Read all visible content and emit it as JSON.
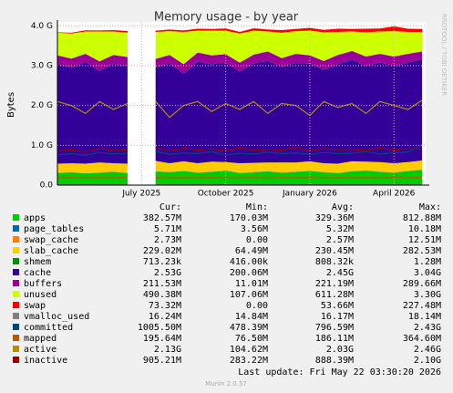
{
  "chart_data": {
    "type": "area",
    "title": "Memory usage - by year",
    "y_label": "Bytes",
    "side_note": "RRDTOOL / TOBI OETIKER",
    "last_update": "Last update: Fri May 22 03:30:20 2026",
    "footer": "Munin 2.0.57",
    "columns": [
      "Cur:",
      "Min:",
      "Avg:",
      "Max:"
    ],
    "categories": [
      null,
      null,
      null,
      null,
      null,
      null,
      "July 2025",
      null,
      null,
      null,
      null,
      null,
      "October 2025",
      null,
      null,
      null,
      null,
      null,
      "January 2026",
      null,
      null,
      null,
      null,
      null,
      "April 2026",
      null,
      null
    ],
    "ylim": [
      0,
      4100000000
    ],
    "yticks": [
      {
        "value": 0,
        "label": "0.0"
      },
      {
        "value": 1000000000,
        "label": "1.0 G"
      },
      {
        "value": 2000000000,
        "label": "2.0 G"
      },
      {
        "value": 3000000000,
        "label": "3.0 G"
      },
      {
        "value": 4000000000,
        "label": "4.0 G"
      }
    ],
    "grid": true,
    "series": [
      {
        "name": "apps",
        "color": "#00cc00",
        "style": "stack",
        "cur": "382.57M",
        "min": "170.03M",
        "avg": "329.36M",
        "max": "812.88M",
        "values": [
          300000000.0,
          320000000.0,
          290000000.0,
          310000000.0,
          330000000.0,
          300000000.0,
          null,
          340000000.0,
          320000000.0,
          350000000.0,
          310000000.0,
          330000000.0,
          360000000.0,
          300000000.0,
          320000000.0,
          340000000.0,
          310000000.0,
          330000000.0,
          350000000.0,
          320000000.0,
          300000000.0,
          340000000.0,
          360000000.0,
          330000000.0,
          310000000.0,
          350000000.0,
          380000000.0
        ]
      },
      {
        "name": "page_tables",
        "color": "#0066b3",
        "style": "stack",
        "cur": "5.71M",
        "min": "3.56M",
        "avg": "5.32M",
        "max": "10.18M",
        "values": [
          5200000.0,
          5300000.0,
          5100000.0,
          5400000.0,
          5300000.0,
          5200000.0,
          null,
          5500000.0,
          5300000.0,
          5400000.0,
          5200000.0,
          5300000.0,
          5500000.0,
          5100000.0,
          5300000.0,
          5400000.0,
          5200000.0,
          5300000.0,
          5400000.0,
          5300000.0,
          5200000.0,
          5400000.0,
          5500000.0,
          5300000.0,
          5200000.0,
          5500000.0,
          5700000.0
        ]
      },
      {
        "name": "swap_cache",
        "color": "#ff8000",
        "style": "stack",
        "cur": "2.73M",
        "min": "0.00",
        "avg": "2.57M",
        "max": "12.51M",
        "values": [
          2500000.0,
          2600000.0,
          2400000.0,
          2700000.0,
          2600000.0,
          2500000.0,
          null,
          2600000.0,
          2500000.0,
          2700000.0,
          2600000.0,
          2500000.0,
          2600000.0,
          2400000.0,
          2600000.0,
          2700000.0,
          2500000.0,
          2600000.0,
          2600000.0,
          2500000.0,
          2600000.0,
          2700000.0,
          2600000.0,
          2500000.0,
          2600000.0,
          2700000.0,
          2700000.0
        ]
      },
      {
        "name": "slab_cache",
        "color": "#ffcc00",
        "style": "stack",
        "cur": "229.02M",
        "min": "64.49M",
        "avg": "230.45M",
        "max": "282.53M",
        "values": [
          230000000.0,
          220000000.0,
          240000000.0,
          250000000.0,
          210000000.0,
          230000000.0,
          null,
          260000000.0,
          220000000.0,
          240000000.0,
          230000000.0,
          250000000.0,
          210000000.0,
          240000000.0,
          230000000.0,
          220000000.0,
          250000000.0,
          230000000.0,
          240000000.0,
          220000000.0,
          230000000.0,
          250000000.0,
          220000000.0,
          240000000.0,
          230000000.0,
          220000000.0,
          230000000.0
        ]
      },
      {
        "name": "shmem",
        "color": "#008f00",
        "style": "stack",
        "cur": "713.23k",
        "min": "416.00k",
        "avg": "808.32k",
        "max": "1.28M",
        "values": [
          800000.0,
          810000.0,
          790000.0,
          820000.0,
          810000.0,
          800000.0,
          null,
          830000.0,
          810000.0,
          800000.0,
          820000.0,
          810000.0,
          800000.0,
          790000.0,
          810000.0,
          820000.0,
          800000.0,
          810000.0,
          820000.0,
          810000.0,
          800000.0,
          810000.0,
          820000.0,
          810000.0,
          800000.0,
          780000.0,
          710000.0
        ]
      },
      {
        "name": "cache",
        "color": "#330099",
        "style": "stack",
        "cur": "2.53G",
        "min": "200.06M",
        "avg": "2.45G",
        "max": "3.04G",
        "values": [
          2500000000.0,
          2400000000.0,
          2550000000.0,
          2300000000.0,
          2500000000.0,
          2450000000.0,
          null,
          2350000000.0,
          2500000000.0,
          2200000000.0,
          2550000000.0,
          2450000000.0,
          2500000000.0,
          2300000000.0,
          2500000000.0,
          2550000000.0,
          2400000000.0,
          2500000000.0,
          2450000000.0,
          2350000000.0,
          2500000000.0,
          2550000000.0,
          2400000000.0,
          2500000000.0,
          2450000000.0,
          2500000000.0,
          2530000000.0
        ]
      },
      {
        "name": "buffers",
        "color": "#990099",
        "style": "stack",
        "cur": "211.53M",
        "min": "11.01M",
        "avg": "221.19M",
        "max": "289.66M",
        "values": [
          220000000.0,
          230000000.0,
          210000000.0,
          240000000.0,
          220000000.0,
          230000000.0,
          null,
          210000000.0,
          220000000.0,
          240000000.0,
          230000000.0,
          220000000.0,
          210000000.0,
          230000000.0,
          220000000.0,
          240000000.0,
          220000000.0,
          230000000.0,
          210000000.0,
          220000000.0,
          230000000.0,
          220000000.0,
          240000000.0,
          220000000.0,
          230000000.0,
          220000000.0,
          210000000.0
        ]
      },
      {
        "name": "unused",
        "color": "#ccff00",
        "style": "stack",
        "cur": "490.38M",
        "min": "107.06M",
        "avg": "611.28M",
        "max": "3.30G",
        "values": [
          570000000.0,
          630000000.0,
          560000000.0,
          750000000.0,
          590000000.0,
          610000000.0,
          null,
          680000000.0,
          600000000.0,
          810000000.0,
          550000000.0,
          620000000.0,
          590000000.0,
          730000000.0,
          600000000.0,
          500000000.0,
          640000000.0,
          570000000.0,
          620000000.0,
          720000000.0,
          580000000.0,
          490000000.0,
          610000000.0,
          560000000.0,
          640000000.0,
          550000000.0,
          490000000.0
        ]
      },
      {
        "name": "swap",
        "color": "#ff0000",
        "style": "stack",
        "cur": "73.32M",
        "min": "0.00",
        "avg": "53.66M",
        "max": "227.48M",
        "values": [
          10000000.0,
          20000000.0,
          30000000.0,
          25000000.0,
          35000000.0,
          40000000.0,
          null,
          30000000.0,
          40000000.0,
          35000000.0,
          50000000.0,
          45000000.0,
          55000000.0,
          40000000.0,
          60000000.0,
          50000000.0,
          65000000.0,
          55000000.0,
          70000000.0,
          60000000.0,
          80000000.0,
          65000000.0,
          90000000.0,
          75000000.0,
          120000000.0,
          80000000.0,
          73000000.0
        ]
      },
      {
        "name": "vmalloc_used",
        "color": "#808080",
        "style": "line",
        "cur": "16.24M",
        "min": "14.84M",
        "avg": "16.17M",
        "max": "18.14M",
        "values": [
          16000000.0,
          16000000.0,
          16000000.0,
          16000000.0,
          16000000.0,
          16000000.0,
          null,
          16000000.0,
          16000000.0,
          16000000.0,
          16000000.0,
          16000000.0,
          16000000.0,
          16000000.0,
          16000000.0,
          16000000.0,
          16000000.0,
          16000000.0,
          16000000.0,
          16000000.0,
          16000000.0,
          16000000.0,
          16000000.0,
          16000000.0,
          16000000.0,
          16000000.0,
          16000000.0
        ]
      },
      {
        "name": "committed",
        "color": "#00487d",
        "style": "line",
        "cur": "1005.50M",
        "min": "478.39M",
        "avg": "796.59M",
        "max": "2.43G",
        "values": [
          760000000.0,
          790000000.0,
          750000000.0,
          820000000.0,
          780000000.0,
          800000000.0,
          null,
          850000000.0,
          770000000.0,
          810000000.0,
          790000000.0,
          840000000.0,
          760000000.0,
          800000000.0,
          780000000.0,
          830000000.0,
          790000000.0,
          810000000.0,
          770000000.0,
          820000000.0,
          790000000.0,
          800000000.0,
          840000000.0,
          780000000.0,
          810000000.0,
          830000000.0,
          1000000000.0
        ]
      },
      {
        "name": "mapped",
        "color": "#b35a00",
        "style": "line",
        "cur": "195.64M",
        "min": "76.50M",
        "avg": "186.11M",
        "max": "364.60M",
        "values": [
          180000000.0,
          190000000.0,
          180000000.0,
          190000000.0,
          185000000.0,
          190000000.0,
          null,
          190000000.0,
          180000000.0,
          190000000.0,
          185000000.0,
          190000000.0,
          180000000.0,
          185000000.0,
          190000000.0,
          180000000.0,
          190000000.0,
          185000000.0,
          190000000.0,
          180000000.0,
          190000000.0,
          185000000.0,
          190000000.0,
          180000000.0,
          190000000.0,
          185000000.0,
          196000000.0
        ]
      },
      {
        "name": "active",
        "color": "#b38f00",
        "style": "line",
        "cur": "2.13G",
        "min": "104.62M",
        "avg": "2.03G",
        "max": "2.46G",
        "values": [
          2100000000.0,
          2000000000.0,
          1800000000.0,
          2100000000.0,
          1900000000.0,
          2050000000.0,
          null,
          2100000000.0,
          1700000000.0,
          2000000000.0,
          2100000000.0,
          1850000000.0,
          2050000000.0,
          1900000000.0,
          2100000000.0,
          1800000000.0,
          2050000000.0,
          2000000000.0,
          1750000000.0,
          2100000000.0,
          1950000000.0,
          2050000000.0,
          1800000000.0,
          2100000000.0,
          2000000000.0,
          1900000000.0,
          2130000000.0
        ]
      },
      {
        "name": "inactive",
        "color": "#990000",
        "style": "line",
        "cur": "905.21M",
        "min": "283.22M",
        "avg": "888.39M",
        "max": "2.10G",
        "values": [
          860000000.0,
          890000000.0,
          840000000.0,
          920000000.0,
          870000000.0,
          880000000.0,
          null,
          960000000.0,
          850000000.0,
          930000000.0,
          880000000.0,
          910000000.0,
          860000000.0,
          940000000.0,
          870000000.0,
          900000000.0,
          880000000.0,
          950000000.0,
          860000000.0,
          920000000.0,
          890000000.0,
          900000000.0,
          870000000.0,
          930000000.0,
          880000000.0,
          910000000.0,
          905000000.0
        ]
      }
    ]
  }
}
